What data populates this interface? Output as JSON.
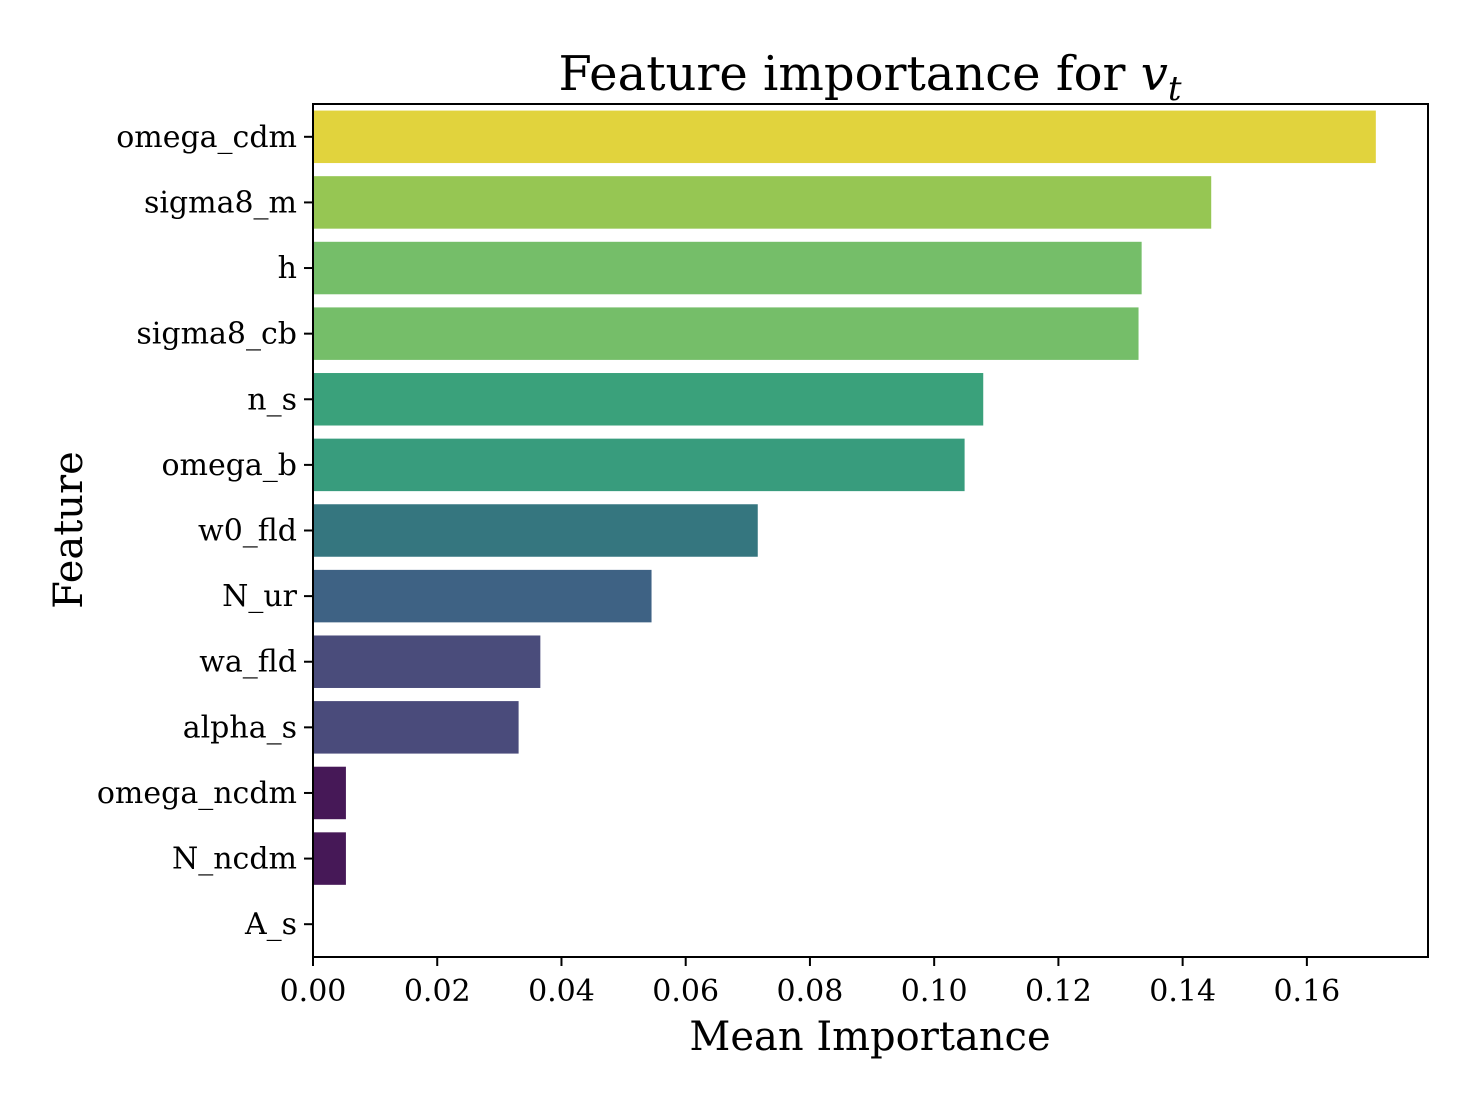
{
  "chart_data": {
    "type": "bar",
    "orientation": "horizontal",
    "title": {
      "prefix": "Feature importance for ",
      "variable": "v",
      "subscript": "t"
    },
    "xlabel": "Mean Importance",
    "ylabel": "Feature",
    "xlim": [
      0,
      0.1795
    ],
    "x_ticks": [
      0.0,
      0.02,
      0.04,
      0.06,
      0.08,
      0.1,
      0.12,
      0.14,
      0.16
    ],
    "x_tick_labels": [
      "0.00",
      "0.02",
      "0.04",
      "0.06",
      "0.08",
      "0.10",
      "0.12",
      "0.14",
      "0.16"
    ],
    "grid": false,
    "colormap": "viridis",
    "categories": [
      "omega_cdm",
      "sigma8_m",
      "h",
      "sigma8_cb",
      "n_s",
      "omega_b",
      "w0_fld",
      "N_ur",
      "wa_fld",
      "alpha_s",
      "omega_ncdm",
      "N_ncdm",
      "A_s"
    ],
    "category_labels": [
      "omega_cdm",
      "sigma8_m",
      "h",
      "sigma8_cb",
      "n_s",
      "omega_b",
      "w0_fld",
      "N_ur",
      "wa_fld",
      "alpha_s",
      "omega_ncdm",
      "N_ncdm",
      "A_s"
    ],
    "values": [
      0.1711,
      0.1446,
      0.1334,
      0.1329,
      0.1079,
      0.1049,
      0.0716,
      0.0545,
      0.0366,
      0.0331,
      0.0053,
      0.0053,
      0.0
    ],
    "colors": [
      "#e1d33d",
      "#96c653",
      "#75be69",
      "#75be69",
      "#3aa17b",
      "#389c7d",
      "#35767f",
      "#3e6284",
      "#4a4c7b",
      "#4a4b7b",
      "#461857",
      "#461857",
      "#440154"
    ]
  }
}
